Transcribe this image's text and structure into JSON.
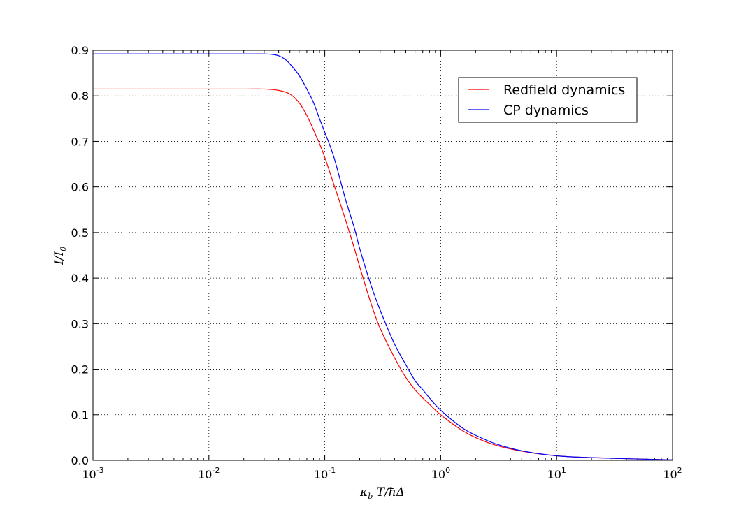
{
  "chart_data": {
    "type": "line",
    "title": "",
    "xlabel": "κ_b T/ħΔ",
    "ylabel": "I/I_0",
    "xscale": "log",
    "xlim": [
      0.001,
      100
    ],
    "ylim": [
      0.0,
      0.9
    ],
    "grid": true,
    "legend_position": "upper right",
    "x_ticks": [
      {
        "base": "10",
        "exp": "-3"
      },
      {
        "base": "10",
        "exp": "-2"
      },
      {
        "base": "10",
        "exp": "-1"
      },
      {
        "base": "10",
        "exp": "0"
      },
      {
        "base": "10",
        "exp": "1"
      },
      {
        "base": "10",
        "exp": "2"
      }
    ],
    "x_tick_values": [
      0.001,
      0.01,
      0.1,
      1,
      10,
      100
    ],
    "y_ticks": [
      "0.0",
      "0.1",
      "0.2",
      "0.3",
      "0.4",
      "0.5",
      "0.6",
      "0.7",
      "0.8",
      "0.9"
    ],
    "y_tick_values": [
      0.0,
      0.1,
      0.2,
      0.3,
      0.4,
      0.5,
      0.6,
      0.7,
      0.8,
      0.9
    ],
    "series": [
      {
        "name": "Redfield dynamics",
        "color": "#ff0000",
        "x": [
          0.001,
          0.003,
          0.01,
          0.02,
          0.03,
          0.04,
          0.05,
          0.06,
          0.07,
          0.08,
          0.09,
          0.1,
          0.12,
          0.15,
          0.18,
          0.2,
          0.25,
          0.3,
          0.4,
          0.5,
          0.6,
          0.7,
          0.8,
          1.0,
          1.5,
          2.0,
          3.0,
          5.0,
          10.0,
          20.0,
          50.0,
          100.0
        ],
        "y": [
          0.815,
          0.815,
          0.815,
          0.815,
          0.815,
          0.812,
          0.804,
          0.785,
          0.757,
          0.725,
          0.695,
          0.665,
          0.605,
          0.53,
          0.465,
          0.425,
          0.345,
          0.29,
          0.225,
          0.182,
          0.155,
          0.137,
          0.123,
          0.1,
          0.067,
          0.05,
          0.033,
          0.02,
          0.01,
          0.006,
          0.003,
          0.001
        ]
      },
      {
        "name": "CP dynamics",
        "color": "#0000ff",
        "x": [
          0.001,
          0.003,
          0.01,
          0.02,
          0.03,
          0.035,
          0.04,
          0.045,
          0.05,
          0.06,
          0.07,
          0.08,
          0.09,
          0.1,
          0.12,
          0.15,
          0.18,
          0.2,
          0.25,
          0.3,
          0.4,
          0.5,
          0.6,
          0.7,
          0.8,
          1.0,
          1.5,
          2.0,
          3.0,
          5.0,
          10.0,
          20.0,
          50.0,
          100.0
        ],
        "y": [
          0.892,
          0.892,
          0.892,
          0.892,
          0.892,
          0.891,
          0.888,
          0.881,
          0.87,
          0.845,
          0.815,
          0.785,
          0.75,
          0.72,
          0.665,
          0.575,
          0.51,
          0.465,
          0.385,
          0.33,
          0.255,
          0.21,
          0.175,
          0.155,
          0.137,
          0.11,
          0.073,
          0.055,
          0.036,
          0.021,
          0.01,
          0.006,
          0.003,
          0.001
        ]
      }
    ]
  }
}
